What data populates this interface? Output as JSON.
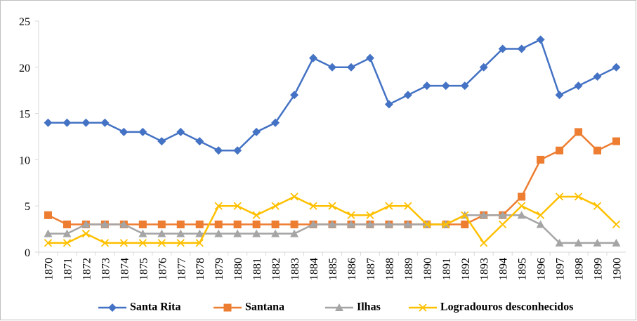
{
  "chart_data": {
    "type": "line",
    "categories": [
      "1870",
      "1871",
      "1872",
      "1873",
      "1874",
      "1875",
      "1876",
      "1877",
      "1878",
      "1879",
      "1880",
      "1881",
      "1882",
      "1883",
      "1884",
      "1885",
      "1886",
      "1887",
      "1888",
      "1889",
      "1890",
      "1891",
      "1892",
      "1893",
      "1894",
      "1895",
      "1896",
      "1897",
      "1898",
      "1899",
      "1900"
    ],
    "series": [
      {
        "name": "Santa Rita",
        "color": "#4472c4",
        "marker": "diamond",
        "values": [
          14,
          14,
          14,
          14,
          13,
          13,
          12,
          13,
          12,
          11,
          11,
          13,
          14,
          17,
          21,
          20,
          20,
          21,
          16,
          17,
          18,
          18,
          18,
          20,
          22,
          22,
          23,
          17,
          18,
          19,
          20
        ]
      },
      {
        "name": "Santana",
        "color": "#ed7d31",
        "marker": "square",
        "values": [
          4,
          3,
          3,
          3,
          3,
          3,
          3,
          3,
          3,
          3,
          3,
          3,
          3,
          3,
          3,
          3,
          3,
          3,
          3,
          3,
          3,
          3,
          3,
          4,
          4,
          6,
          10,
          11,
          13,
          11,
          12
        ]
      },
      {
        "name": "Ilhas",
        "color": "#a5a5a5",
        "marker": "triangle",
        "values": [
          2,
          2,
          3,
          3,
          3,
          2,
          2,
          2,
          2,
          2,
          2,
          2,
          2,
          2,
          3,
          3,
          3,
          3,
          3,
          3,
          3,
          3,
          4,
          4,
          4,
          4,
          3,
          1,
          1,
          1,
          1
        ]
      },
      {
        "name": "Logradouros desconhecidos",
        "color": "#ffc000",
        "marker": "x",
        "values": [
          1,
          1,
          2,
          1,
          1,
          1,
          1,
          1,
          1,
          5,
          5,
          4,
          5,
          6,
          5,
          5,
          4,
          4,
          5,
          5,
          3,
          3,
          4,
          1,
          3,
          5,
          4,
          6,
          6,
          5,
          3
        ]
      }
    ],
    "ylim": [
      0,
      25
    ],
    "yticks": [
      0,
      5,
      10,
      15,
      20,
      25
    ],
    "legend": "bottom"
  }
}
